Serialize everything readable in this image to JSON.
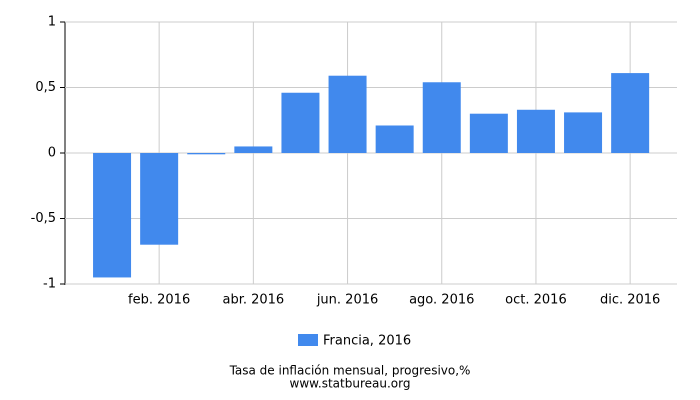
{
  "chart_data": {
    "type": "bar",
    "categories": [
      null,
      "feb. 2016",
      null,
      "abr. 2016",
      null,
      "jun. 2016",
      null,
      "ago. 2016",
      null,
      "oct. 2016",
      null,
      "dic. 2016"
    ],
    "series": [
      {
        "name": "Francia, 2016",
        "color": "#4189ed",
        "values": [
          -0.95,
          -0.7,
          -0.01,
          0.05,
          0.46,
          0.59,
          0.21,
          0.54,
          0.3,
          0.33,
          0.31,
          0.61
        ]
      }
    ],
    "ylim": [
      -1,
      1
    ],
    "yticks": [
      {
        "value": -1,
        "label": "-1"
      },
      {
        "value": -0.5,
        "label": "-0,5"
      },
      0,
      {
        "value": 0.5,
        "label": "0,5"
      },
      1
    ],
    "grid": true,
    "legend": "bottom",
    "subtitle": "Tasa de inflación mensual, progresivo,%",
    "source": "www.statbureau.org"
  }
}
